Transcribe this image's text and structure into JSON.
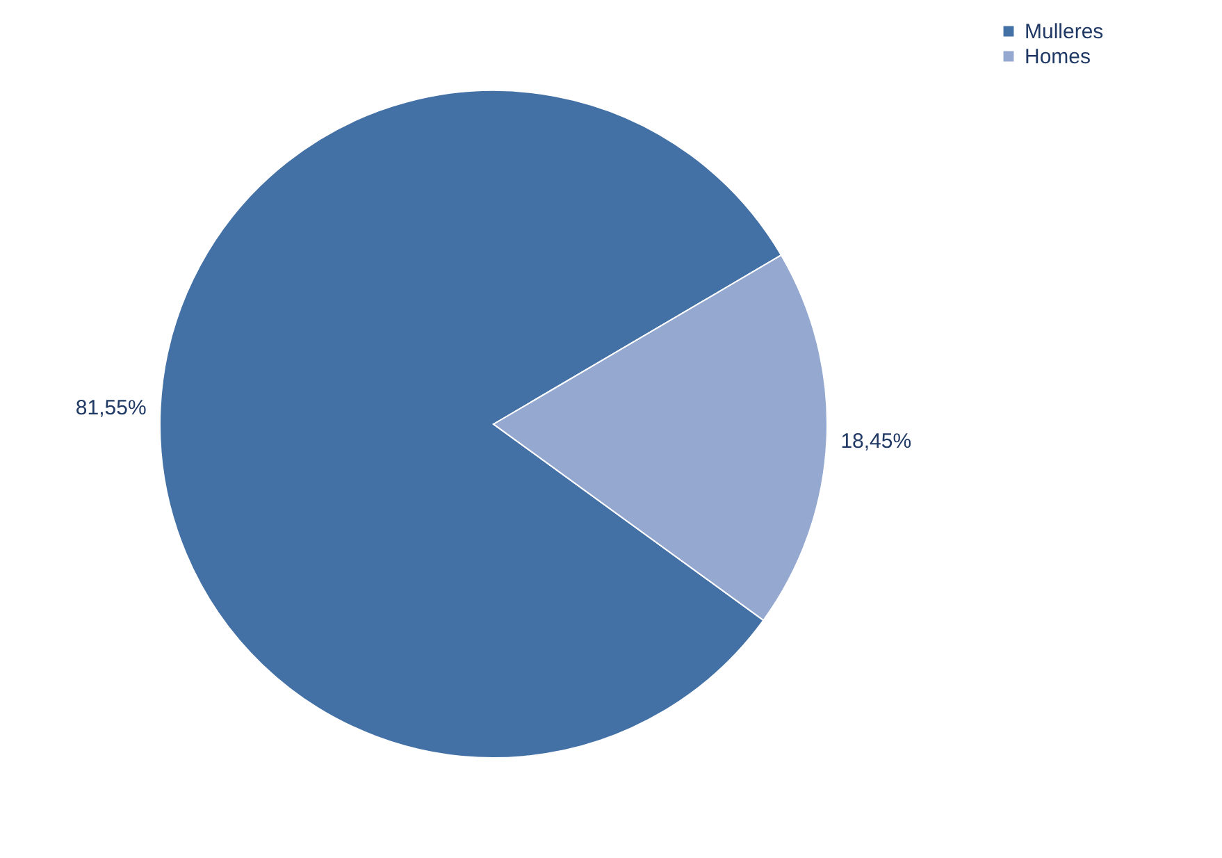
{
  "chart_data": {
    "type": "pie",
    "categories": [
      "Mulleres",
      "Homes"
    ],
    "values": [
      81.55,
      18.45
    ],
    "colors": [
      "#4371a5",
      "#95a9d0"
    ],
    "value_labels": [
      "81,55%",
      "18,45%"
    ],
    "legend": "right"
  }
}
